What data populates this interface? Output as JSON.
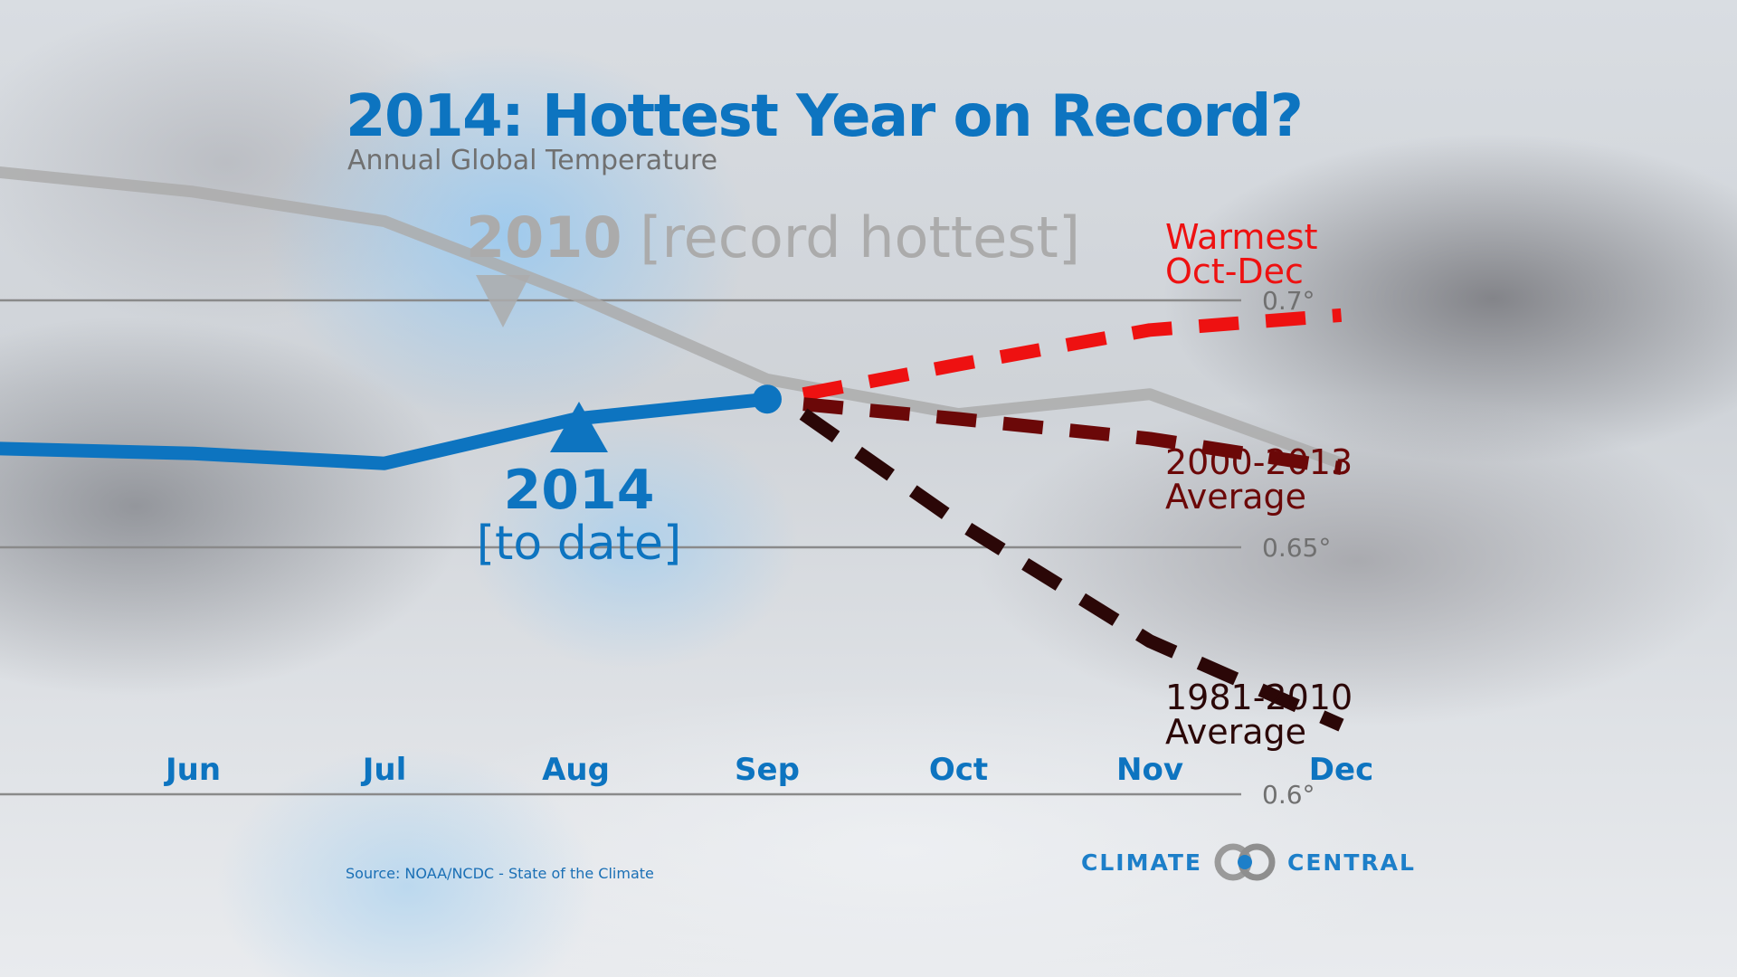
{
  "header": {
    "title": "2014: Hottest Year on Record?",
    "subtitle": "Annual Global Temperature"
  },
  "footer": {
    "source": "Source: NOAA/NCDC - State of the Climate",
    "logo_left": "CLIMATE",
    "logo_right": "CENTRAL"
  },
  "colors": {
    "y2014": "#0d74c0",
    "y2010": "#ababab",
    "warmest": "#ee1111",
    "avg_2000_2013": "#6b0808",
    "avg_1981_2010": "#2b0707",
    "gridline": "#8a8a8a",
    "tick_label": "#707070"
  },
  "chart_data": {
    "type": "line",
    "title": "2014: Hottest Year on Record?",
    "subtitle": "Annual Global Temperature",
    "xlabel": "",
    "ylabel": "",
    "x": [
      "Jun",
      "Jul",
      "Aug",
      "Sep",
      "Oct",
      "Nov",
      "Dec"
    ],
    "x_tick_labels": [
      "Jun",
      "Jul",
      "Aug",
      "Sep",
      "Oct",
      "Nov",
      "Dec"
    ],
    "ylim": [
      0.6,
      0.7
    ],
    "y_ticks": [
      0.6,
      0.65,
      0.7
    ],
    "y_tick_labels": [
      "0.6°",
      "0.65°",
      "0.7°"
    ],
    "grid": true,
    "series": [
      {
        "name": "2010",
        "key": "y2010",
        "style": "solid",
        "x": [
          "May",
          "Jun",
          "Jul",
          "Aug",
          "Sep",
          "Oct",
          "Nov",
          "Dec"
        ],
        "values": [
          0.726,
          0.722,
          0.716,
          0.701,
          0.684,
          0.677,
          0.681,
          0.667
        ],
        "label": "2010",
        "label_suffix": "[record hottest]"
      },
      {
        "name": "2014",
        "key": "y2014",
        "style": "solid",
        "x": [
          "May",
          "Jun",
          "Jul",
          "Aug",
          "Sep"
        ],
        "values": [
          0.67,
          0.669,
          0.667,
          0.676,
          0.68
        ],
        "label": "2014",
        "label_suffix": "[to date]"
      },
      {
        "name": "Warmest Oct-Dec",
        "key": "warmest",
        "style": "dashed",
        "x": [
          "Sep",
          "Oct",
          "Nov",
          "Dec"
        ],
        "values": [
          0.681,
          0.687,
          0.694,
          0.697
        ],
        "label_lines": [
          "Warmest",
          "Oct-Dec"
        ]
      },
      {
        "name": "2000-2013 Average",
        "key": "avg_2000_2013",
        "style": "dashed",
        "x": [
          "Sep",
          "Oct",
          "Nov",
          "Dec"
        ],
        "values": [
          0.679,
          0.676,
          0.672,
          0.666
        ],
        "label_lines": [
          "2000-2013",
          "Average"
        ]
      },
      {
        "name": "1981-2010 Average",
        "key": "avg_1981_2010",
        "style": "dashed",
        "x": [
          "Sep",
          "Oct",
          "Nov",
          "Dec"
        ],
        "values": [
          0.677,
          0.655,
          0.631,
          0.614
        ],
        "label_lines": [
          "1981-2010",
          "Average"
        ]
      }
    ]
  }
}
